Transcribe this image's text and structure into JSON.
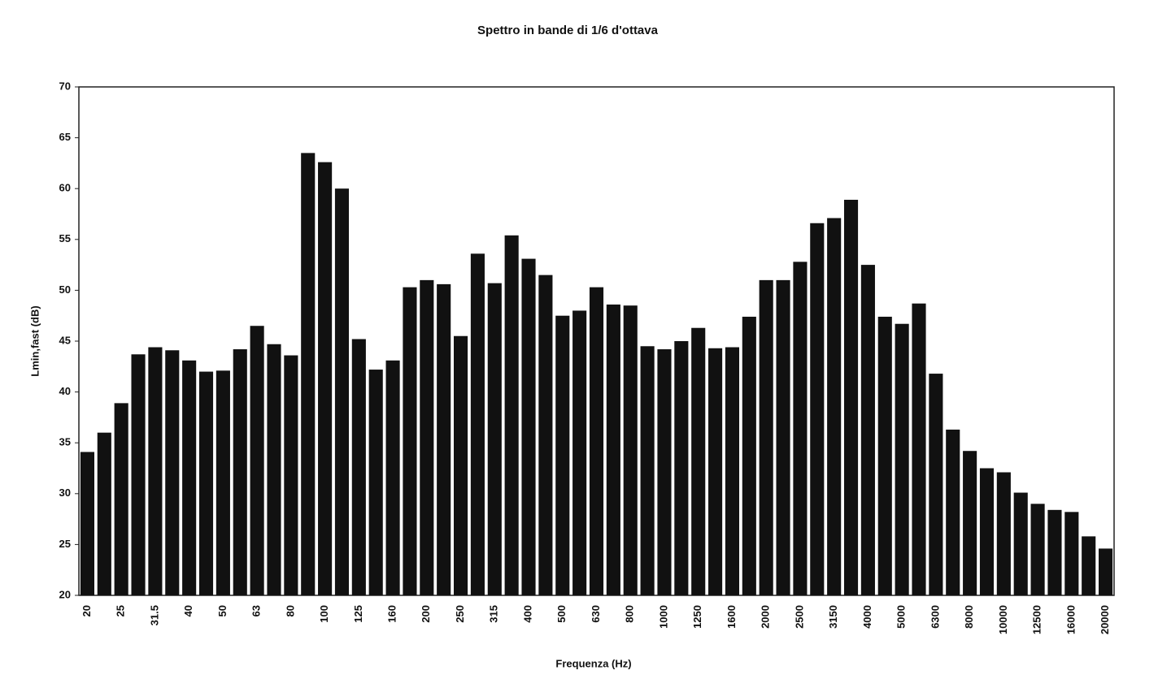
{
  "chart_data": {
    "type": "bar",
    "title": "Spettro in bande di 1/6 d'ottava",
    "x_label": "Frequenza (Hz)",
    "y_label": "Lmin,fast (dB)",
    "categories": [
      "20",
      null,
      "25",
      null,
      "31.5",
      null,
      "40",
      null,
      "50",
      null,
      "63",
      null,
      "80",
      null,
      "100",
      null,
      "125",
      null,
      "160",
      null,
      "200",
      null,
      "250",
      null,
      "315",
      null,
      "400",
      null,
      "500",
      null,
      "630",
      null,
      "800",
      null,
      "1000",
      null,
      "1250",
      null,
      "1600",
      null,
      "2000",
      null,
      "2500",
      null,
      "3150",
      null,
      "4000",
      null,
      "5000",
      null,
      "6300",
      null,
      "8000",
      null,
      "10000",
      null,
      "12500",
      null,
      "16000",
      null,
      "20000"
    ],
    "values": [
      34.1,
      36.0,
      38.9,
      43.7,
      44.4,
      44.1,
      43.1,
      42.0,
      42.1,
      44.2,
      46.5,
      44.7,
      43.6,
      63.5,
      62.6,
      60.0,
      45.2,
      42.2,
      43.1,
      50.3,
      51.0,
      50.6,
      45.5,
      53.6,
      50.7,
      55.4,
      53.1,
      51.5,
      47.5,
      48.0,
      50.3,
      48.6,
      48.5,
      44.5,
      44.2,
      45.0,
      46.3,
      44.3,
      44.4,
      47.4,
      51.0,
      51.0,
      52.8,
      56.6,
      57.1,
      58.9,
      52.5,
      47.4,
      46.7,
      48.7,
      41.8,
      36.3,
      34.2,
      32.5,
      32.1,
      30.1,
      29.0,
      28.4,
      28.2,
      25.8,
      24.6
    ],
    "color": "#111111",
    "ylim": [
      20,
      70
    ],
    "yticks": [
      20,
      25,
      30,
      35,
      40,
      45,
      50,
      55,
      60,
      65,
      70
    ],
    "grid": false
  }
}
